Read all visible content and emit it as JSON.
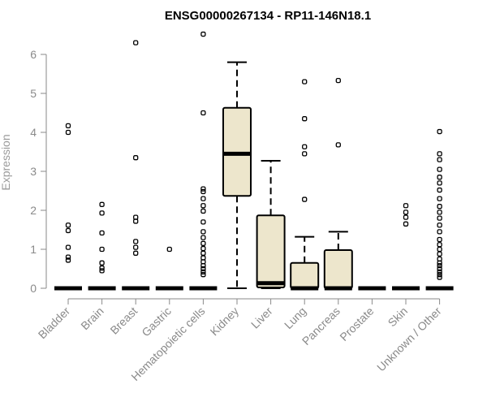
{
  "chart_data": {
    "type": "box",
    "title": "ENSG00000267134 - RP11-146N18.1",
    "ylabel": "Expression",
    "xlabel": "",
    "ylim": [
      0,
      6.5
    ],
    "yticks": [
      0,
      1,
      2,
      3,
      4,
      5,
      6
    ],
    "box_color": "#ede6cc",
    "categories": [
      "Bladder",
      "Brain",
      "Breast",
      "Gastric",
      "Hematopoietic cells",
      "Kidney",
      "Liver",
      "Lung",
      "Pancreas",
      "Prostate",
      "Skin",
      "Unknown / Other"
    ],
    "boxes": [
      {
        "q1": 0,
        "median": 0,
        "q3": 0,
        "whisker_low": 0,
        "whisker_high": 0,
        "outliers": [
          0.72,
          0.8,
          1.05,
          1.48,
          1.62,
          4.0,
          4.17
        ]
      },
      {
        "q1": 0,
        "median": 0,
        "q3": 0,
        "whisker_low": 0,
        "whisker_high": 0,
        "outliers": [
          0.45,
          0.52,
          0.65,
          1.0,
          1.42,
          1.93,
          2.15
        ]
      },
      {
        "q1": 0,
        "median": 0,
        "q3": 0,
        "whisker_low": 0,
        "whisker_high": 0,
        "outliers": [
          0.9,
          1.05,
          1.2,
          1.72,
          1.82,
          3.35,
          6.3
        ]
      },
      {
        "q1": 0,
        "median": 0,
        "q3": 0,
        "whisker_low": 0,
        "whisker_high": 0,
        "outliers": [
          1.0
        ]
      },
      {
        "q1": 0,
        "median": 0,
        "q3": 0,
        "whisker_low": 0,
        "whisker_high": 0,
        "outliers": [
          0.35,
          0.42,
          0.5,
          0.58,
          0.68,
          0.78,
          0.9,
          1.02,
          1.15,
          1.3,
          1.45,
          1.7,
          1.98,
          2.12,
          2.3,
          2.48,
          2.55,
          4.5,
          6.52
        ]
      },
      {
        "q1": 2.37,
        "median": 3.45,
        "q3": 4.63,
        "whisker_low": 0,
        "whisker_high": 5.8,
        "outliers": []
      },
      {
        "q1": 0.02,
        "median": 0.13,
        "q3": 1.87,
        "whisker_low": 0,
        "whisker_high": 3.27,
        "outliers": []
      },
      {
        "q1": 0,
        "median": 0,
        "q3": 0.65,
        "whisker_low": 0,
        "whisker_high": 1.32,
        "outliers": [
          2.28,
          3.45,
          3.63,
          4.35,
          5.3
        ]
      },
      {
        "q1": 0,
        "median": 0,
        "q3": 0.98,
        "whisker_low": 0,
        "whisker_high": 1.45,
        "outliers": [
          3.68,
          5.33
        ]
      },
      {
        "q1": 0,
        "median": 0,
        "q3": 0,
        "whisker_low": 0,
        "whisker_high": 0,
        "outliers": []
      },
      {
        "q1": 0,
        "median": 0,
        "q3": 0,
        "whisker_low": 0,
        "whisker_high": 0,
        "outliers": [
          1.65,
          1.82,
          1.95,
          2.12
        ]
      },
      {
        "q1": 0,
        "median": 0,
        "q3": 0,
        "whisker_low": 0,
        "whisker_high": 0,
        "outliers": [
          0.28,
          0.35,
          0.42,
          0.5,
          0.58,
          0.65,
          0.75,
          0.88,
          1.0,
          1.12,
          1.25,
          1.45,
          1.62,
          1.8,
          1.95,
          2.1,
          2.3,
          2.52,
          2.7,
          2.85,
          3.05,
          3.3,
          3.45,
          4.02
        ]
      }
    ]
  }
}
